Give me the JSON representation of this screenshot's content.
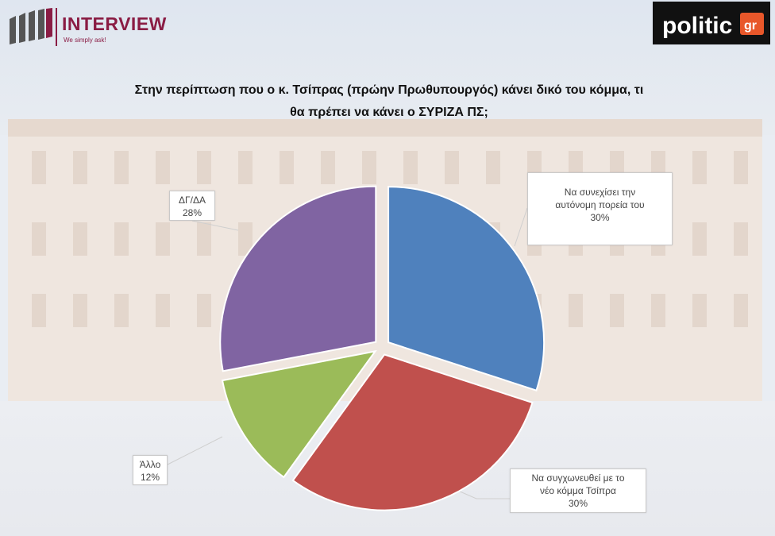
{
  "header": {
    "brand_name": "INTERVIEW",
    "brand_tagline": "We simply ask!",
    "partner_logo": "politic.gr"
  },
  "title_line1": "Στην περίπτωση που ο κ. Τσίπρας (πρώην Πρωθυπουργός) κάνει δικό του κόμμα, τι",
  "title_line2": "θα πρέπει να κάνει ο ΣΥΡΙΖΑ ΠΣ;",
  "colors": {
    "continue": "#4f81bd",
    "merge": "#c0504d",
    "other": "#9bbb59",
    "dk_na": "#8064a2"
  },
  "chart_data": {
    "type": "pie",
    "title": "Στην περίπτωση που ο κ. Τσίπρας (πρώην Πρωθυπουργός) κάνει δικό του κόμμα, τι θα πρέπει να κάνει ο ΣΥΡΙΖΑ ΠΣ;",
    "unit": "%",
    "slices": [
      {
        "label_lines": [
          "Να συνεχίσει την",
          "αυτόνομη πορεία του"
        ],
        "value": 30,
        "value_label": "30%",
        "color": "#4f81bd"
      },
      {
        "label_lines": [
          "Να συγχωνευθεί με το",
          "νέο κόμμα Τσίπρα"
        ],
        "value": 30,
        "value_label": "30%",
        "color": "#c0504d"
      },
      {
        "label_lines": [
          "Άλλο"
        ],
        "value": 12,
        "value_label": "12%",
        "color": "#9bbb59"
      },
      {
        "label_lines": [
          "ΔΓ/ΔΑ"
        ],
        "value": 28,
        "value_label": "28%",
        "color": "#8064a2"
      }
    ]
  }
}
